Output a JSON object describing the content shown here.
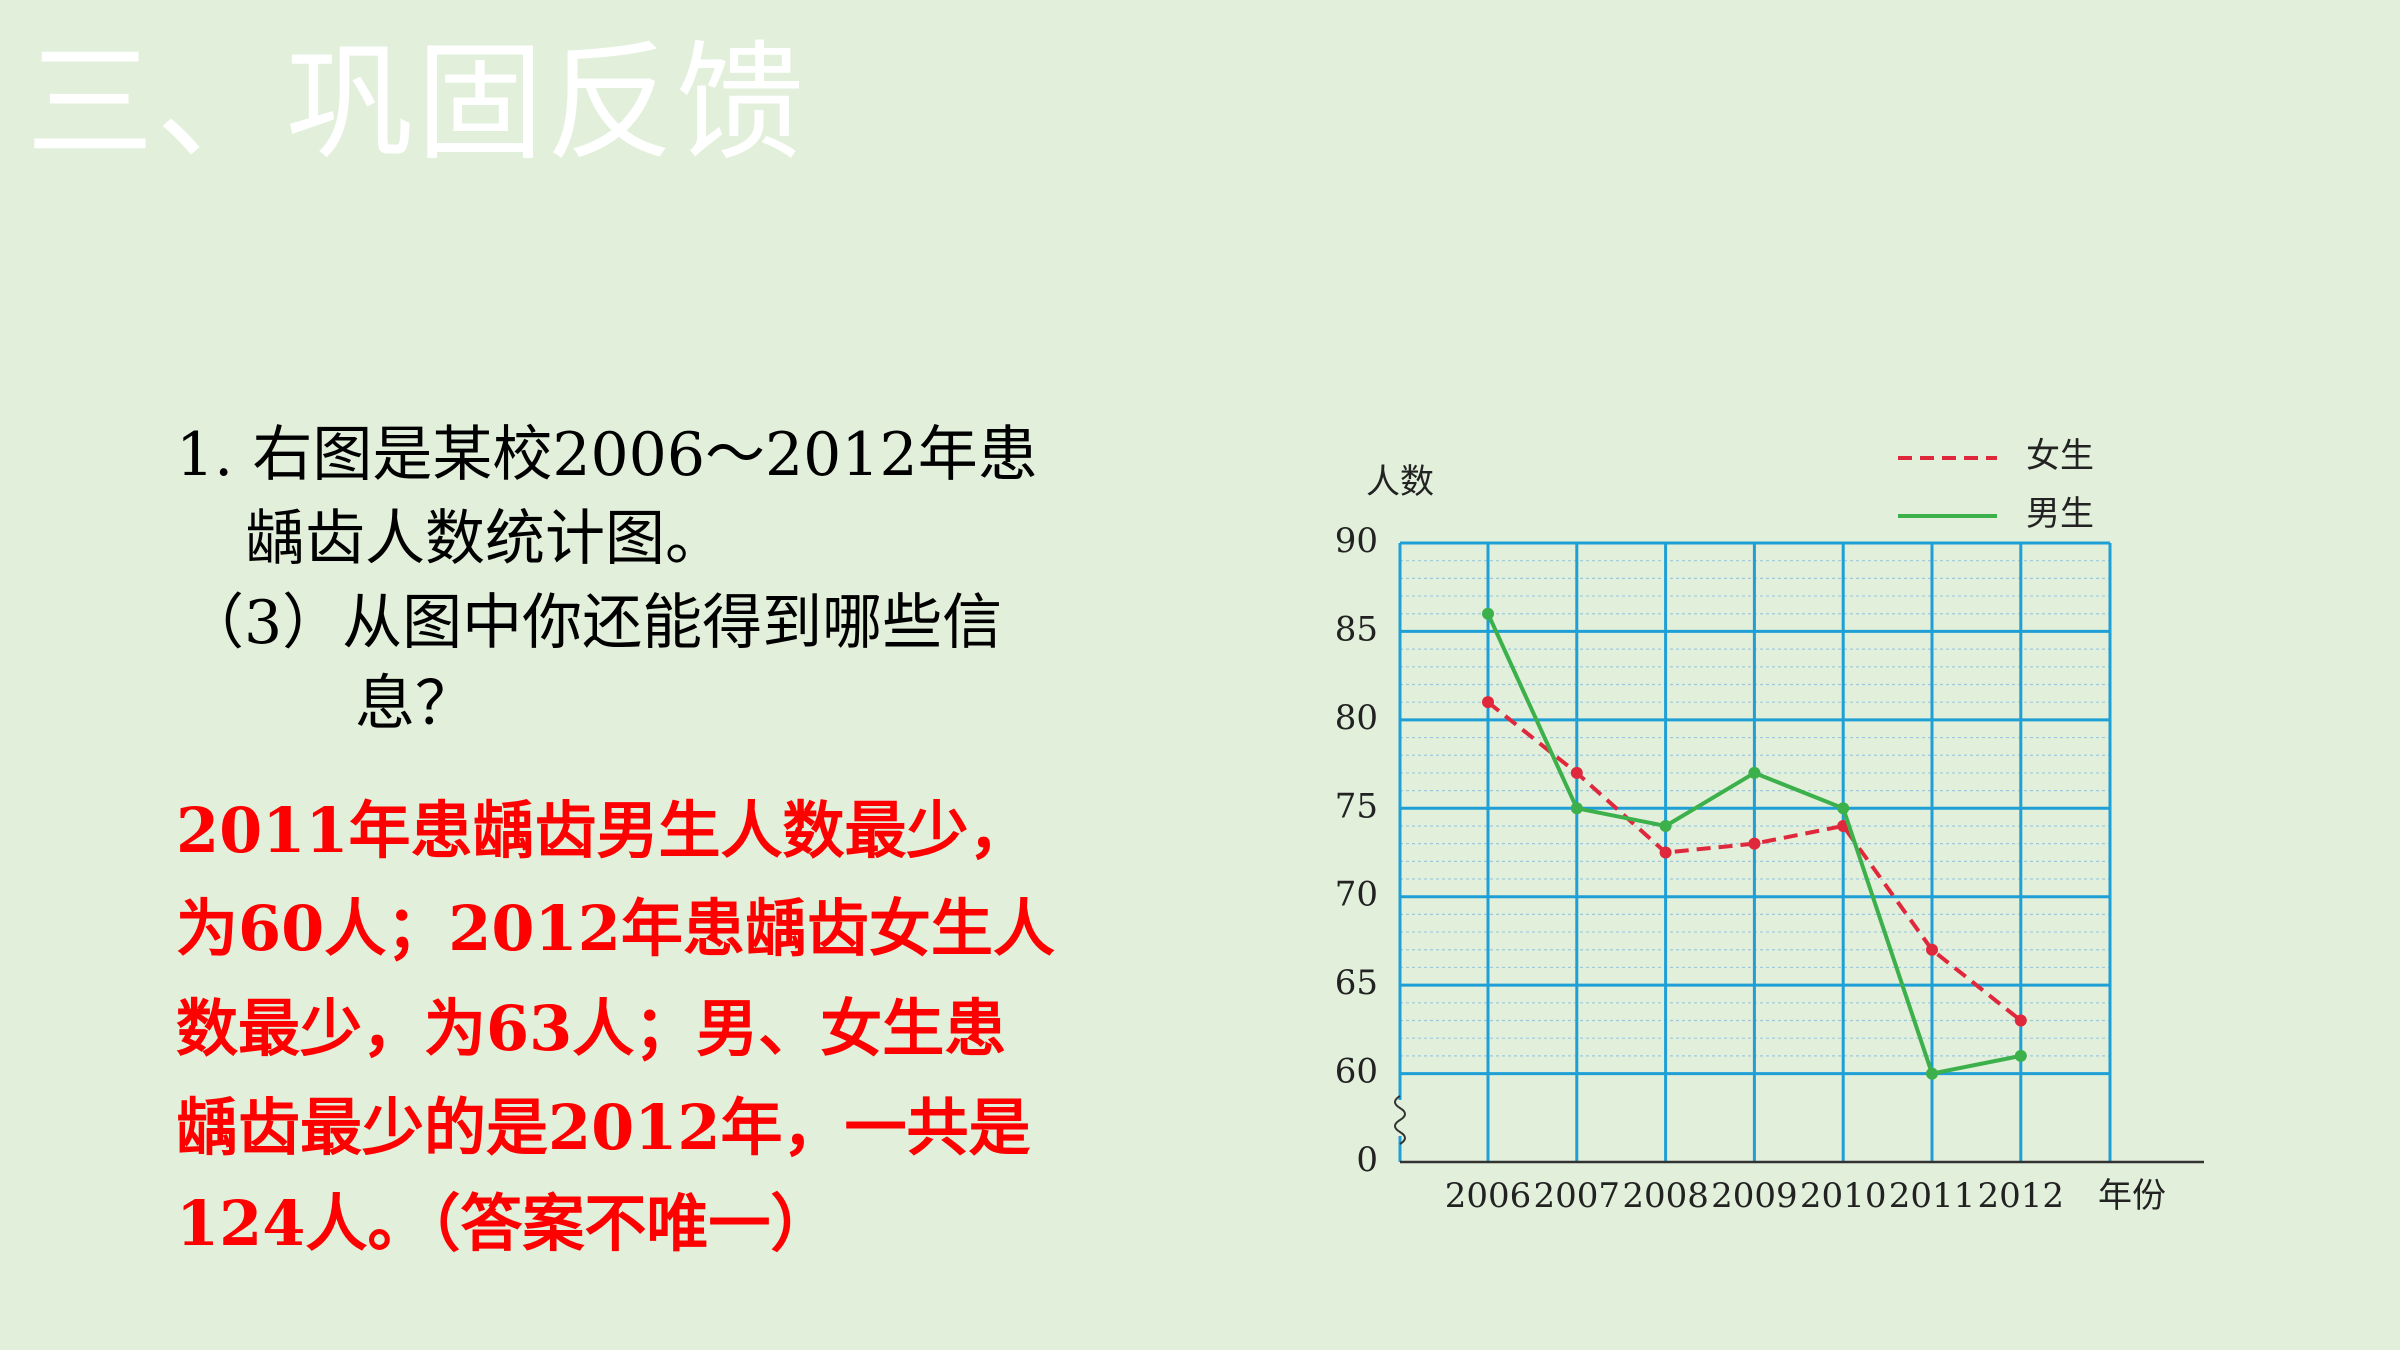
{
  "header": {
    "title": "三、巩固反馈"
  },
  "question": {
    "lines": [
      "1. 右图是某校2006～2012年患",
      "龋齿人数统计图。",
      "（3）从图中你还能得到哪些信",
      "息？"
    ]
  },
  "answer": {
    "lines": [
      "2011年患龋齿男生人数最少，",
      "为60人；2012年患龋齿女生人",
      "数最少，为63人；男、女生患",
      "龋齿最少的是2012年，一共是",
      "124人。（答案不唯一）"
    ]
  },
  "chart_data": {
    "type": "line",
    "y_label": "人数",
    "x_label": "年份",
    "y_break_label": "0",
    "categories": [
      "2006",
      "2007",
      "2008",
      "2009",
      "2010",
      "2011",
      "2012"
    ],
    "series": [
      {
        "name": "女生",
        "color": "#e0283c",
        "dashed": true,
        "values": [
          81,
          77,
          72.5,
          73,
          74,
          67,
          63
        ]
      },
      {
        "name": "男生",
        "color": "#3cb04a",
        "dashed": false,
        "values": [
          86,
          75,
          74,
          77,
          75,
          60,
          61
        ]
      }
    ],
    "ylim": [
      55,
      90
    ],
    "yticks": [
      60,
      65,
      70,
      75,
      80,
      85,
      90
    ],
    "grid": true,
    "grid_color": "#1e9fd6"
  }
}
